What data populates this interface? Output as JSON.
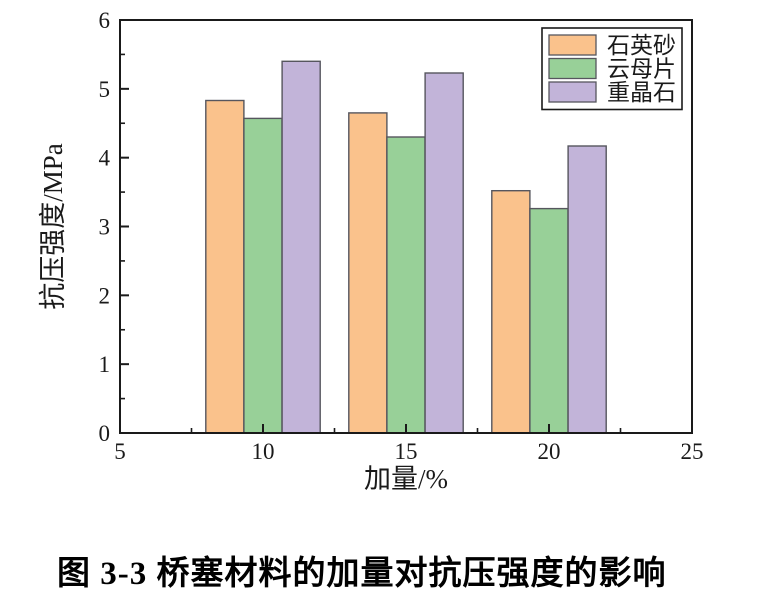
{
  "figure": {
    "caption": "图 3-3 桥塞材料的加量对抗压强度的影响"
  },
  "chart_data": {
    "type": "bar",
    "title": "",
    "xlabel": "加量/%",
    "ylabel": "抗压强度/MPa",
    "categories": [
      10,
      15,
      20
    ],
    "series": [
      {
        "name": "石英砂",
        "color": "#FAC28C",
        "edge_color": "#56565e",
        "values": [
          4.83,
          4.65,
          3.52
        ]
      },
      {
        "name": "云母片",
        "color": "#98D098",
        "edge_color": "#56565e",
        "values": [
          4.57,
          4.3,
          3.26
        ]
      },
      {
        "name": "重晶石",
        "color": "#C2B4D9",
        "edge_color": "#56565e",
        "values": [
          5.4,
          5.23,
          4.17
        ]
      }
    ],
    "xlim": [
      5,
      25
    ],
    "ylim": [
      0,
      6
    ],
    "xticks": [
      5,
      10,
      15,
      20,
      25
    ],
    "yticks": [
      0,
      1,
      2,
      3,
      4,
      5,
      6
    ],
    "x_minor_ticks": [
      7.5,
      12.5,
      17.5,
      22.5
    ],
    "y_minor_ticks": [
      0.5,
      1.5,
      2.5,
      3.5,
      4.5,
      5.5
    ],
    "bar_width_units": 1.3333,
    "grid": false,
    "legend_position": "top-right",
    "axis_color": "#1a1a1a",
    "background_color": "#ffffff"
  }
}
